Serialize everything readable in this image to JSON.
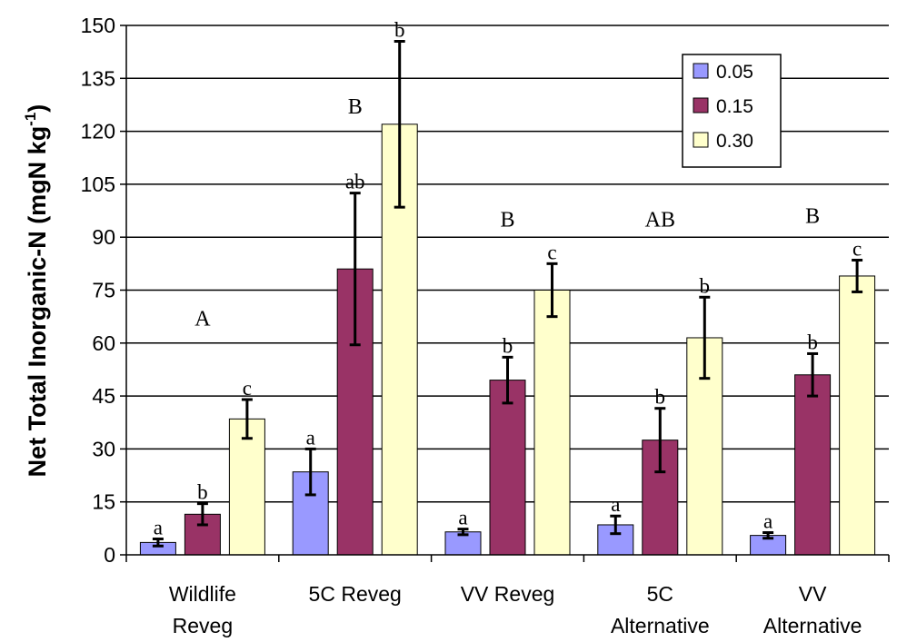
{
  "chart_data": {
    "type": "bar",
    "ylabel": "Net Total Inorganic-N (mgN kg",
    "ylabel_sup": "-1",
    "ylabel_close": ")",
    "ylim": [
      0,
      150
    ],
    "yticks": [
      0,
      15,
      30,
      45,
      60,
      75,
      90,
      105,
      120,
      135,
      150
    ],
    "ytick_labels": [
      "0",
      "15",
      "30",
      "45",
      "60",
      "75",
      "90",
      "105",
      "120",
      "135",
      "150"
    ],
    "grid": true,
    "legend_position": "top-right",
    "categories": [
      {
        "line1": "Wildlife",
        "line2": "Reveg"
      },
      {
        "line1": "5C Reveg",
        "line2": ""
      },
      {
        "line1": "VV Reveg",
        "line2": ""
      },
      {
        "line1": "5C",
        "line2": "Alternative"
      },
      {
        "line1": "VV",
        "line2": "Alternative"
      }
    ],
    "series": [
      {
        "name": "0.05",
        "color": "#9999ff",
        "values": [
          3.5,
          23.5,
          6.5,
          8.5,
          5.5
        ],
        "err": [
          1,
          6.5,
          0.8,
          2.5,
          0.8
        ],
        "labels": [
          "a",
          "a",
          "a",
          "a",
          "a"
        ]
      },
      {
        "name": "0.15",
        "color": "#993366",
        "values": [
          11.5,
          81,
          49.5,
          32.5,
          51
        ],
        "err": [
          3,
          21.5,
          6.5,
          9,
          6
        ],
        "labels": [
          "b",
          "ab",
          "b",
          "b",
          "b"
        ]
      },
      {
        "name": "0.30",
        "color": "#ffffcc",
        "values": [
          38.5,
          122,
          75,
          61.5,
          79
        ],
        "err": [
          5.5,
          23.5,
          7.5,
          11.5,
          4.5
        ],
        "labels": [
          "c",
          "b",
          "c",
          "b",
          "c"
        ]
      }
    ],
    "group_labels": [
      "A",
      "B",
      "B",
      "AB",
      "B"
    ],
    "group_label_values": [
      65,
      125,
      93,
      93,
      94
    ]
  }
}
